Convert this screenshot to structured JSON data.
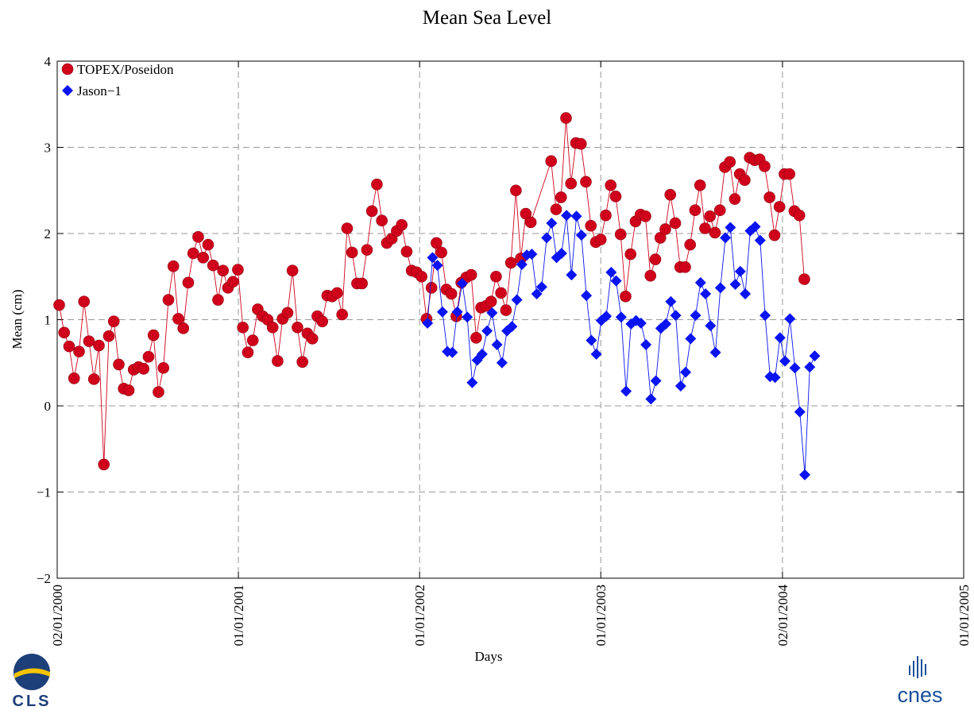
{
  "chart_data": {
    "type": "line",
    "title": "Mean Sea Level",
    "x_label": "Days",
    "y_label": "Mean (cm)",
    "xlim": [
      "2000-01-02",
      "2005-01-01"
    ],
    "xticks": [
      {
        "value": "2000-01-02",
        "label": "02/01/2000"
      },
      {
        "value": "2001-01-01",
        "label": "01/01/2001"
      },
      {
        "value": "2002-01-01",
        "label": "01/01/2002"
      },
      {
        "value": "2003-01-01",
        "label": "01/01/2003"
      },
      {
        "value": "2004-01-02",
        "label": "02/01/2004"
      },
      {
        "value": "2005-01-01",
        "label": "01/01/2005"
      }
    ],
    "ylim": [
      -2,
      4
    ],
    "yticks": [
      {
        "value": -2,
        "label": "−2"
      },
      {
        "value": -1,
        "label": "−1"
      },
      0,
      1,
      2,
      3,
      4
    ],
    "grid": true,
    "legend": "upper left",
    "series": [
      {
        "name": "TOPEX/Poseidon",
        "color": "#d0021b",
        "marker": "circle",
        "x": [
          "2000-01-06",
          "2000-01-16",
          "2000-01-26",
          "2000-02-05",
          "2000-02-15",
          "2000-02-25",
          "2000-03-06",
          "2000-03-16",
          "2000-03-26",
          "2000-04-05",
          "2000-04-15",
          "2000-04-25",
          "2000-05-05",
          "2000-05-15",
          "2000-05-25",
          "2000-06-04",
          "2000-06-14",
          "2000-06-24",
          "2000-07-04",
          "2000-07-14",
          "2000-07-24",
          "2000-08-03",
          "2000-08-13",
          "2000-08-23",
          "2000-09-02",
          "2000-09-12",
          "2000-09-22",
          "2000-10-02",
          "2000-10-12",
          "2000-10-22",
          "2000-11-01",
          "2000-11-11",
          "2000-11-21",
          "2000-12-01",
          "2000-12-11",
          "2000-12-21",
          "2000-12-31",
          "2001-01-10",
          "2001-01-20",
          "2001-01-30",
          "2001-02-09",
          "2001-02-19",
          "2001-03-01",
          "2001-03-11",
          "2001-03-21",
          "2001-03-31",
          "2001-04-10",
          "2001-04-20",
          "2001-04-30",
          "2001-05-10",
          "2001-05-20",
          "2001-05-30",
          "2001-06-09",
          "2001-06-19",
          "2001-06-29",
          "2001-07-09",
          "2001-07-19",
          "2001-07-29",
          "2001-08-08",
          "2001-08-18",
          "2001-08-28",
          "2001-09-07",
          "2001-09-17",
          "2001-09-27",
          "2001-10-07",
          "2001-10-17",
          "2001-10-27",
          "2001-11-06",
          "2001-11-16",
          "2001-11-26",
          "2001-12-06",
          "2001-12-16",
          "2001-12-26",
          "2002-01-05",
          "2002-01-15",
          "2002-01-25",
          "2002-02-04",
          "2002-02-14",
          "2002-02-24",
          "2002-03-06",
          "2002-03-16",
          "2002-03-26",
          "2002-04-05",
          "2002-04-15",
          "2002-04-25",
          "2002-05-05",
          "2002-05-15",
          "2002-05-25",
          "2002-06-04",
          "2002-06-14",
          "2002-06-24",
          "2002-07-04",
          "2002-07-14",
          "2002-07-24",
          "2002-08-03",
          "2002-08-13",
          "2002-09-23",
          "2002-10-03",
          "2002-10-13",
          "2002-10-23",
          "2002-11-02",
          "2002-11-12",
          "2002-11-22",
          "2002-12-02",
          "2002-12-12",
          "2002-12-22",
          "2003-01-01",
          "2003-01-11",
          "2003-01-21",
          "2003-01-31",
          "2003-02-10",
          "2003-02-20",
          "2003-03-02",
          "2003-03-12",
          "2003-03-22",
          "2003-04-01",
          "2003-04-11",
          "2003-04-21",
          "2003-05-01",
          "2003-05-11",
          "2003-05-21",
          "2003-05-31",
          "2003-06-10",
          "2003-06-20",
          "2003-06-30",
          "2003-07-10",
          "2003-07-20",
          "2003-07-30",
          "2003-08-09",
          "2003-08-19",
          "2003-08-29",
          "2003-09-08",
          "2003-09-18",
          "2003-09-28",
          "2003-10-08",
          "2003-10-18",
          "2003-10-28",
          "2003-11-07",
          "2003-11-17",
          "2003-11-27",
          "2003-12-07",
          "2003-12-17",
          "2003-12-27",
          "2004-01-06",
          "2004-01-16",
          "2004-01-26",
          "2004-02-05",
          "2004-02-15"
        ],
        "values": [
          1.17,
          0.85,
          0.69,
          0.32,
          0.63,
          1.21,
          0.75,
          0.31,
          0.7,
          -0.68,
          0.81,
          0.98,
          0.48,
          0.2,
          0.18,
          0.42,
          0.45,
          0.43,
          0.57,
          0.82,
          0.16,
          0.44,
          1.23,
          1.62,
          1.01,
          0.9,
          1.43,
          1.77,
          1.96,
          1.72,
          1.87,
          1.63,
          1.23,
          1.57,
          1.37,
          1.44,
          1.58,
          0.91,
          0.62,
          0.76,
          1.12,
          1.04,
          1.0,
          0.91,
          0.52,
          1.01,
          1.08,
          1.57,
          0.91,
          0.51,
          0.84,
          0.78,
          1.04,
          0.98,
          1.28,
          1.27,
          1.31,
          1.06,
          2.06,
          1.78,
          1.42,
          1.42,
          1.81,
          2.26,
          2.57,
          2.15,
          1.89,
          1.94,
          2.03,
          2.1,
          1.79,
          1.57,
          1.55,
          1.5,
          1.01,
          1.37,
          1.89,
          1.78,
          1.35,
          1.3,
          1.04,
          1.43,
          1.49,
          1.52,
          0.79,
          1.14,
          1.16,
          1.21,
          1.5,
          1.31,
          1.11,
          1.66,
          2.5,
          1.71,
          2.23,
          2.13,
          2.84,
          2.28,
          2.42,
          3.34,
          2.58,
          3.05,
          3.04,
          2.6,
          2.09,
          1.9,
          1.93,
          2.21,
          2.56,
          2.43,
          1.99,
          1.27,
          1.76,
          2.14,
          2.22,
          2.2,
          1.51,
          1.7,
          1.95,
          2.05,
          2.45,
          2.12,
          1.61,
          1.61,
          1.87,
          2.27,
          2.56,
          2.06,
          2.2,
          2.01,
          2.27,
          2.77,
          2.83,
          2.4,
          2.69,
          2.62,
          2.88,
          2.85,
          2.86,
          2.78,
          2.42,
          1.98,
          2.31,
          2.69,
          2.69,
          2.26,
          2.21,
          1.47
        ]
      },
      {
        "name": "Jason−1",
        "color": "#0a14f0",
        "marker": "diamond",
        "x": [
          "2002-01-17",
          "2002-01-27",
          "2002-02-06",
          "2002-02-16",
          "2002-02-26",
          "2002-03-08",
          "2002-03-18",
          "2002-03-28",
          "2002-04-07",
          "2002-04-17",
          "2002-04-27",
          "2002-05-07",
          "2002-05-17",
          "2002-05-27",
          "2002-06-06",
          "2002-06-16",
          "2002-06-26",
          "2002-07-06",
          "2002-07-16",
          "2002-07-26",
          "2002-08-05",
          "2002-08-15",
          "2002-08-25",
          "2002-09-04",
          "2002-09-14",
          "2002-09-24",
          "2002-10-04",
          "2002-10-14",
          "2002-10-24",
          "2002-11-03",
          "2002-11-13",
          "2002-11-23",
          "2002-12-03",
          "2002-12-13",
          "2002-12-23",
          "2003-01-02",
          "2003-01-12",
          "2003-01-22",
          "2003-02-01",
          "2003-02-11",
          "2003-02-21",
          "2003-03-03",
          "2003-03-13",
          "2003-03-23",
          "2003-04-02",
          "2003-04-12",
          "2003-04-22",
          "2003-05-02",
          "2003-05-12",
          "2003-05-22",
          "2003-06-01",
          "2003-06-11",
          "2003-06-21",
          "2003-07-01",
          "2003-07-11",
          "2003-07-21",
          "2003-07-31",
          "2003-08-10",
          "2003-08-20",
          "2003-08-30",
          "2003-09-09",
          "2003-09-19",
          "2003-09-29",
          "2003-10-09",
          "2003-10-19",
          "2003-10-29",
          "2003-11-08",
          "2003-11-18",
          "2003-11-28",
          "2003-12-08",
          "2003-12-18",
          "2003-12-28",
          "2004-01-07",
          "2004-01-17",
          "2004-01-27",
          "2004-02-06",
          "2004-02-16",
          "2004-02-26",
          "2004-03-07"
        ],
        "values": [
          0.96,
          1.72,
          1.63,
          1.09,
          0.63,
          0.62,
          1.09,
          1.42,
          1.03,
          0.27,
          0.53,
          0.6,
          0.87,
          1.08,
          0.71,
          0.5,
          0.87,
          0.92,
          1.23,
          1.64,
          1.75,
          1.76,
          1.3,
          1.38,
          1.95,
          2.12,
          1.72,
          1.77,
          2.21,
          1.52,
          2.2,
          1.98,
          1.28,
          0.76,
          0.6,
          0.99,
          1.04,
          1.55,
          1.45,
          1.03,
          0.17,
          0.95,
          0.99,
          0.96,
          0.71,
          0.08,
          0.29,
          0.9,
          0.95,
          1.21,
          1.05,
          0.23,
          0.39,
          0.78,
          1.05,
          1.43,
          1.3,
          0.93,
          0.62,
          1.37,
          1.95,
          2.07,
          1.41,
          1.56,
          1.3,
          2.03,
          2.08,
          1.92,
          1.05,
          0.34,
          0.33,
          0.79,
          0.52,
          1.01,
          0.44,
          -0.07,
          -0.8,
          0.45,
          0.58
        ]
      }
    ]
  },
  "logos": {
    "left": "CLS",
    "right": "cnes"
  }
}
